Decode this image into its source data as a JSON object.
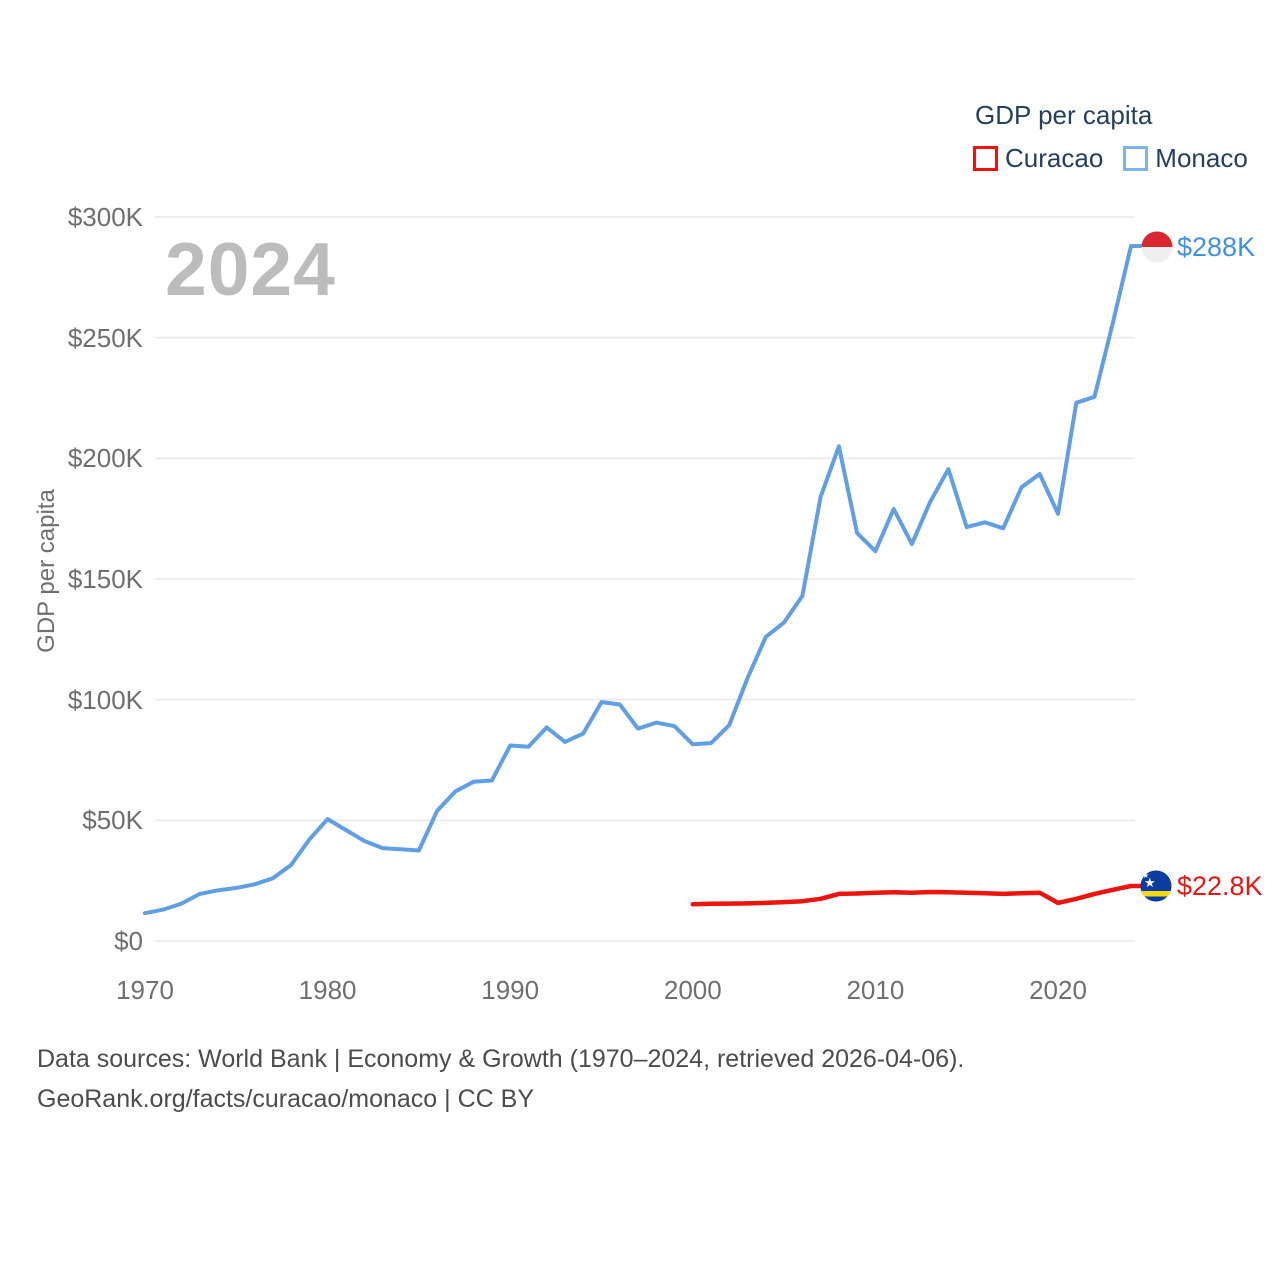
{
  "watermark": "2024",
  "legend": {
    "title": "GDP per capita",
    "items": [
      {
        "label": "Curacao",
        "color": "#ef130d"
      },
      {
        "label": "Monaco",
        "color": "#7db2ea"
      }
    ]
  },
  "y_axis": {
    "label": "GDP per capita",
    "ticks": [
      "$0",
      "$50K",
      "$100K",
      "$150K",
      "$200K",
      "$250K",
      "$300K"
    ]
  },
  "x_axis": {
    "ticks": [
      "1970",
      "1980",
      "1990",
      "2000",
      "2010",
      "2020"
    ]
  },
  "end_labels": {
    "monaco": {
      "text": "$288K",
      "color": "#3f90ea"
    },
    "curacao": {
      "text": "$22.8K",
      "color": "#ef130d"
    }
  },
  "footer": {
    "line1": "Data sources: World Bank | Economy & Growth (1970–2024, retrieved 2026-04-06).",
    "line2": "GeoRank.org/facts/curacao/monaco | CC BY"
  },
  "chart_data": {
    "type": "line",
    "title": "GDP per capita",
    "ylabel": "GDP per capita",
    "units": "USD thousands per person",
    "ylim": [
      0,
      300
    ],
    "xlim": [
      1970,
      2024
    ],
    "grid": "horizontal",
    "legend_position": "top-right",
    "series": [
      {
        "name": "Monaco",
        "color": "#5f9fe7",
        "x": [
          1970,
          1971,
          1972,
          1973,
          1974,
          1975,
          1976,
          1977,
          1978,
          1979,
          1980,
          1981,
          1982,
          1983,
          1984,
          1985,
          1986,
          1987,
          1988,
          1989,
          1990,
          1991,
          1992,
          1993,
          1994,
          1995,
          1996,
          1997,
          1998,
          1999,
          2000,
          2001,
          2002,
          2003,
          2004,
          2005,
          2006,
          2007,
          2008,
          2009,
          2010,
          2011,
          2012,
          2013,
          2014,
          2015,
          2016,
          2017,
          2018,
          2019,
          2020,
          2021,
          2022,
          2023,
          2024
        ],
        "values": [
          11.5,
          13,
          15.5,
          19.5,
          21,
          22,
          23.5,
          26,
          31.5,
          42,
          50.5,
          46,
          41.5,
          38.5,
          38,
          37.5,
          54,
          62,
          66,
          66.5,
          81,
          80.5,
          88.5,
          82.5,
          86,
          99,
          98,
          88,
          90.5,
          89,
          81.5,
          82,
          89.5,
          109,
          126,
          132,
          143,
          184,
          205,
          169,
          161.5,
          179,
          164.5,
          182,
          195.5,
          171.5,
          173.5,
          171,
          188,
          193.5,
          177,
          223,
          225.5,
          256,
          288
        ]
      },
      {
        "name": "Curacao",
        "color": "#ef130d",
        "x": [
          2000,
          2001,
          2002,
          2003,
          2004,
          2005,
          2006,
          2007,
          2008,
          2009,
          2010,
          2011,
          2012,
          2013,
          2014,
          2015,
          2016,
          2017,
          2018,
          2019,
          2020,
          2021,
          2022,
          2023,
          2024
        ],
        "values": [
          15.2,
          15.4,
          15.5,
          15.6,
          15.8,
          16.1,
          16.5,
          17.5,
          19.5,
          19.7,
          20,
          20.2,
          20,
          20.3,
          20.2,
          20,
          19.8,
          19.5,
          19.8,
          20,
          15.8,
          17.5,
          19.5,
          21.2,
          22.8
        ]
      }
    ],
    "end_annotations": [
      {
        "series": "Monaco",
        "label": "$288K",
        "value": 288
      },
      {
        "series": "Curacao",
        "label": "$22.8K",
        "value": 22.8
      }
    ]
  }
}
